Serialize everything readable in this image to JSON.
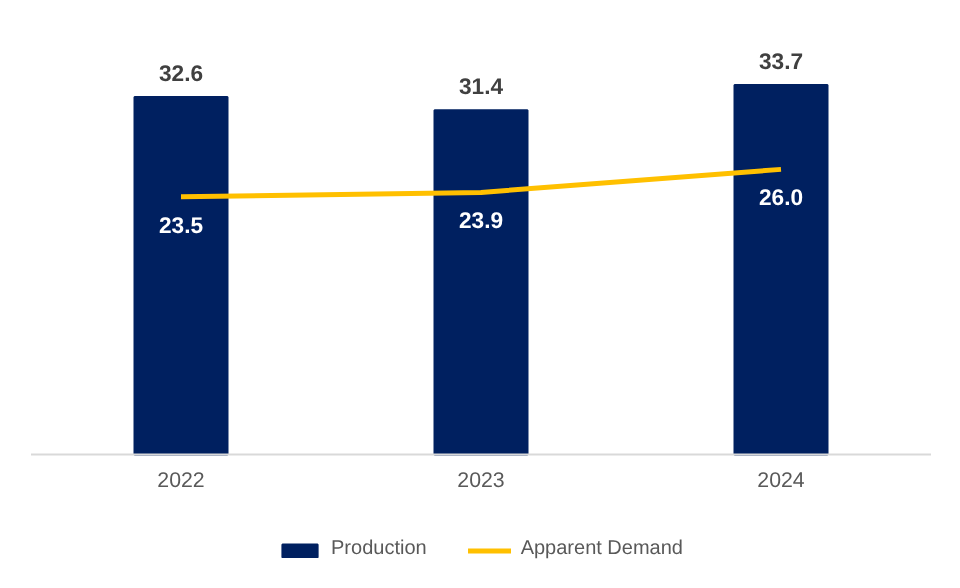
{
  "chart_data": {
    "type": "bar",
    "categories": [
      "2022",
      "2023",
      "2024"
    ],
    "series": [
      {
        "name": "Production",
        "color": "#002060",
        "values": [
          32.6,
          31.4,
          33.7
        ],
        "value_labels": [
          "32.6",
          "31.4",
          "33.7"
        ]
      },
      {
        "name": "Apparent Demand",
        "type": "line",
        "color": "#ffc000",
        "values": [
          23.5,
          23.9,
          26.0
        ],
        "value_labels": [
          "23.5",
          "23.9",
          "26.0"
        ]
      }
    ],
    "legend": "bottom",
    "grid": false
  }
}
